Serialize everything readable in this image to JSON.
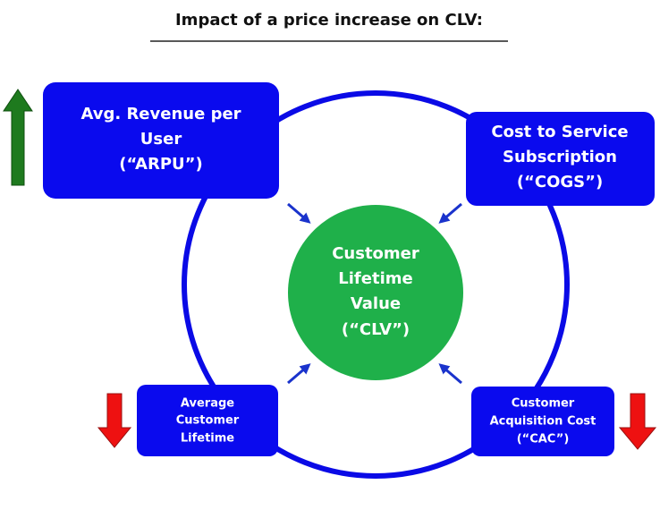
{
  "title": "Impact of a price increase on CLV:",
  "nodes": [
    {
      "lines": [
        "Customer",
        "Lifetime",
        "Value",
        "(“CLV”)"
      ]
    },
    {
      "lines": [
        "Avg. Revenue per",
        "User",
        "(“ARPU”)"
      ]
    },
    {
      "lines": [
        "Cost to Service",
        "Subscription",
        "(“COGS”)"
      ]
    },
    {
      "lines": [
        "Average",
        "Customer",
        "Lifetime"
      ]
    },
    {
      "lines": [
        "Customer",
        "Acquisition Cost",
        "(“CAC”)"
      ]
    }
  ]
}
